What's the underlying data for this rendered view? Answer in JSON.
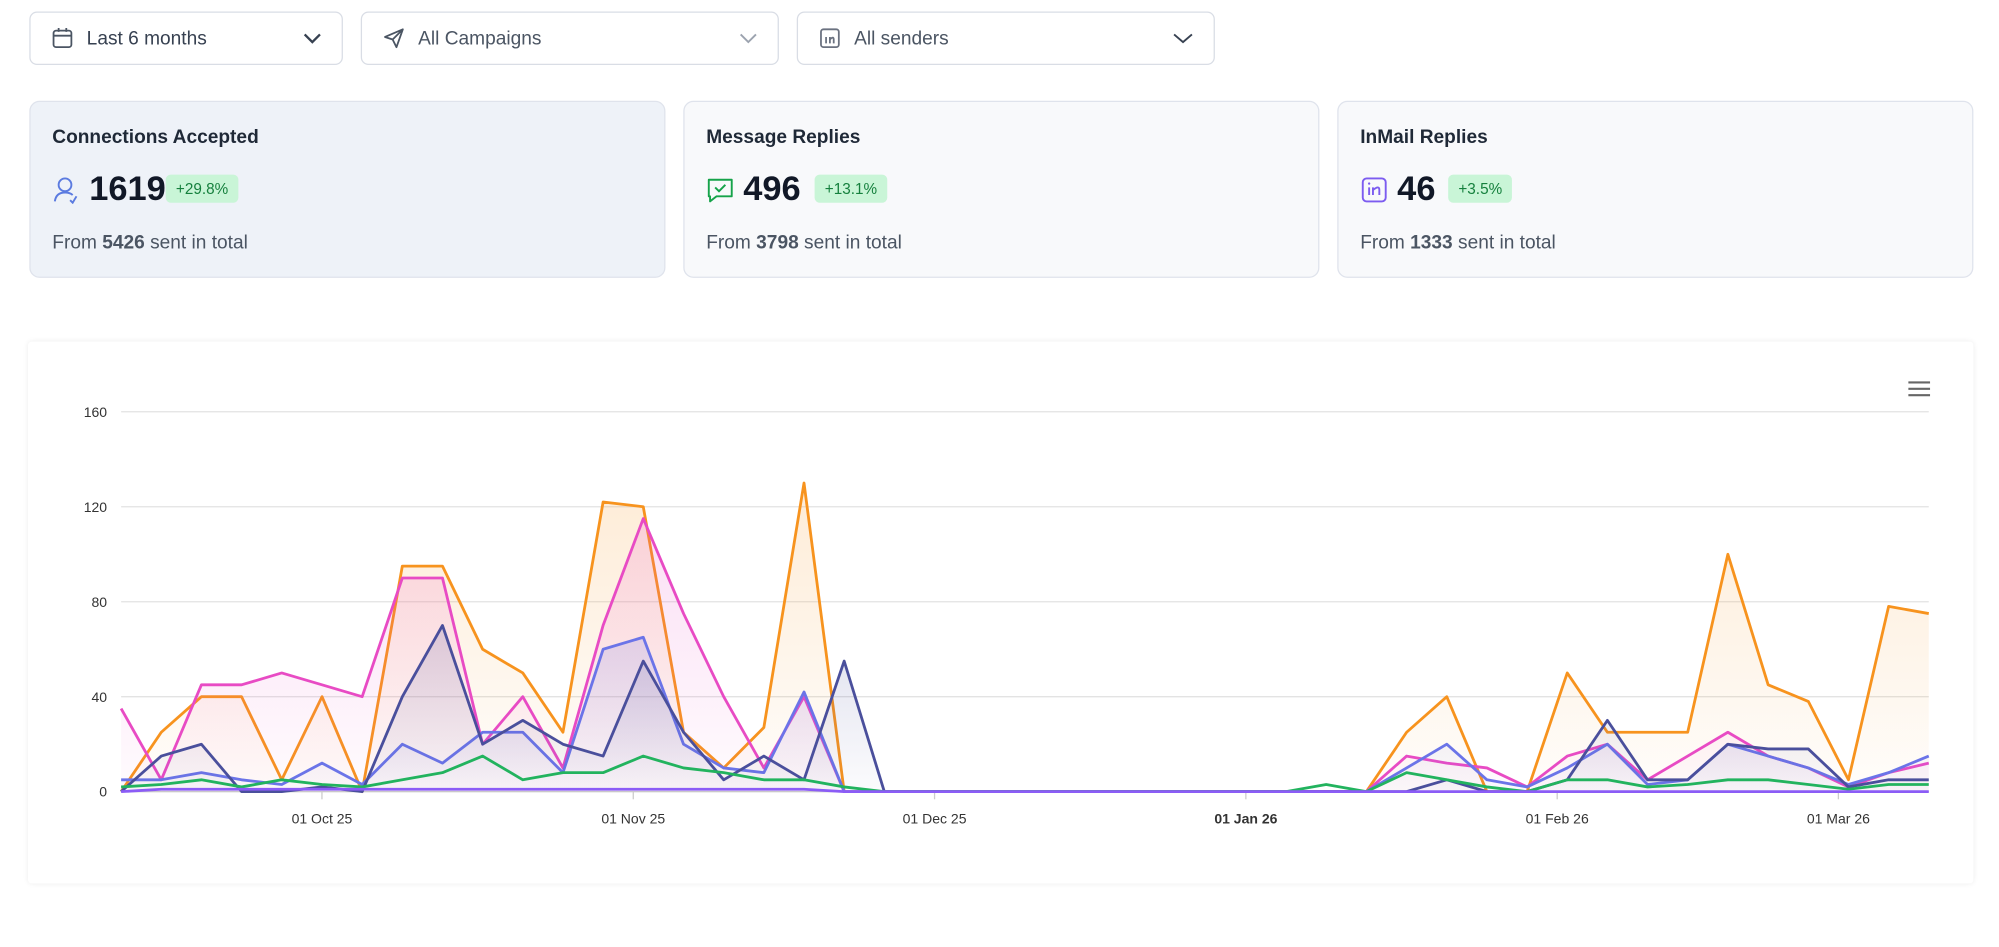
{
  "filters": [
    {
      "label": "Last 6 months"
    },
    {
      "label": "All Campaigns"
    },
    {
      "label": "All senders"
    }
  ],
  "cards": [
    {
      "title": "Connections Accepted",
      "value": 1619,
      "change": "+29.8%",
      "from": "From",
      "sent": 5426,
      "suffix": "sent in total"
    },
    {
      "title": "Message Replies",
      "value": 496,
      "change": "+13.1%",
      "from": "From",
      "sent": 3798,
      "suffix": "sent in total"
    },
    {
      "title": "InMail Replies",
      "value": 46,
      "change": "+3.5%",
      "from": "From",
      "sent": 1333,
      "suffix": "sent in total"
    }
  ],
  "chart_data": {
    "type": "line",
    "x": [
      "2025-09-11",
      "2025-09-15",
      "2025-09-19",
      "2025-09-23",
      "2025-09-27",
      "2025-10-01",
      "2025-10-05",
      "2025-10-09",
      "2025-10-13",
      "2025-10-17",
      "2025-10-21",
      "2025-10-25",
      "2025-10-29",
      "2025-11-02",
      "2025-11-06",
      "2025-11-10",
      "2025-11-14",
      "2025-11-18",
      "2025-11-22",
      "2025-11-26",
      "2025-11-30",
      "2025-12-04",
      "2025-12-08",
      "2025-12-12",
      "2025-12-16",
      "2025-12-20",
      "2025-12-24",
      "2025-12-28",
      "2026-01-01",
      "2026-01-05",
      "2026-01-09",
      "2026-01-13",
      "2026-01-17",
      "2026-01-21",
      "2026-01-25",
      "2026-01-29",
      "2026-02-02",
      "2026-02-06",
      "2026-02-10",
      "2026-02-14",
      "2026-02-18",
      "2026-02-22",
      "2026-02-26",
      "2026-03-02",
      "2026-03-06",
      "2026-03-10"
    ],
    "xlim": [
      "2025-09-11",
      "2026-03-10"
    ],
    "xticks": [
      {
        "value": "2025-10-01",
        "label": "01 Oct 25"
      },
      {
        "value": "2025-11-01",
        "label": "01 Nov 25"
      },
      {
        "value": "2025-12-01",
        "label": "01 Dec 25"
      },
      {
        "value": "2026-01-01",
        "label": "01 Jan 26"
      },
      {
        "value": "2026-02-01",
        "label": "01 Feb 26"
      },
      {
        "value": "2026-03-01",
        "label": "01 Mar 26"
      }
    ],
    "ylim": [
      0,
      160
    ],
    "yticks": [
      0,
      40,
      80,
      120,
      160
    ],
    "grid": true,
    "series": [
      {
        "color": "#f7931e",
        "area": true,
        "values": [
          0,
          25,
          40,
          40,
          5,
          40,
          0,
          95,
          95,
          60,
          50,
          25,
          122,
          120,
          25,
          10,
          27,
          130,
          0,
          0,
          0,
          0,
          0,
          0,
          0,
          0,
          0,
          0,
          0,
          0,
          0,
          0,
          25,
          40,
          0,
          0,
          50,
          25,
          25,
          25,
          100,
          45,
          38,
          5,
          78,
          75
        ]
      },
      {
        "color": "#e84bc4",
        "area": true,
        "values": [
          35,
          5,
          45,
          45,
          50,
          45,
          40,
          90,
          90,
          20,
          40,
          10,
          70,
          115,
          75,
          40,
          10,
          40,
          0,
          0,
          0,
          0,
          0,
          0,
          0,
          0,
          0,
          0,
          0,
          0,
          0,
          0,
          15,
          12,
          10,
          2,
          15,
          20,
          5,
          15,
          25,
          15,
          10,
          2,
          8,
          12
        ]
      },
      {
        "color": "#6b74e8",
        "area": true,
        "values": [
          5,
          5,
          8,
          5,
          3,
          12,
          3,
          20,
          12,
          25,
          25,
          8,
          60,
          65,
          20,
          10,
          8,
          42,
          0,
          0,
          0,
          0,
          0,
          0,
          0,
          0,
          0,
          0,
          0,
          0,
          0,
          0,
          10,
          20,
          5,
          2,
          10,
          20,
          3,
          5,
          20,
          15,
          10,
          3,
          8,
          15
        ]
      },
      {
        "color": "#4a4f9c",
        "area": true,
        "values": [
          0,
          15,
          20,
          0,
          0,
          2,
          0,
          40,
          70,
          20,
          30,
          20,
          15,
          55,
          25,
          5,
          15,
          5,
          55,
          0,
          0,
          0,
          0,
          0,
          0,
          0,
          0,
          0,
          0,
          0,
          0,
          0,
          0,
          5,
          0,
          0,
          5,
          30,
          5,
          5,
          20,
          18,
          18,
          2,
          5,
          5
        ]
      },
      {
        "color": "#22b35e",
        "area": false,
        "values": [
          2,
          3,
          5,
          2,
          5,
          3,
          2,
          5,
          8,
          15,
          5,
          8,
          8,
          15,
          10,
          8,
          5,
          5,
          2,
          0,
          0,
          0,
          0,
          0,
          0,
          0,
          0,
          0,
          0,
          0,
          3,
          0,
          8,
          5,
          2,
          0,
          5,
          5,
          2,
          3,
          5,
          5,
          3,
          1,
          3,
          3
        ]
      },
      {
        "color": "#8b5cf6",
        "area": false,
        "values": [
          0,
          1,
          1,
          1,
          1,
          1,
          1,
          1,
          1,
          1,
          1,
          1,
          1,
          1,
          1,
          1,
          1,
          1,
          0,
          0,
          0,
          0,
          0,
          0,
          0,
          0,
          0,
          0,
          0,
          0,
          0,
          0,
          0,
          0,
          0,
          0,
          0,
          0,
          0,
          0,
          0,
          0,
          0,
          0,
          0,
          0
        ]
      }
    ]
  }
}
